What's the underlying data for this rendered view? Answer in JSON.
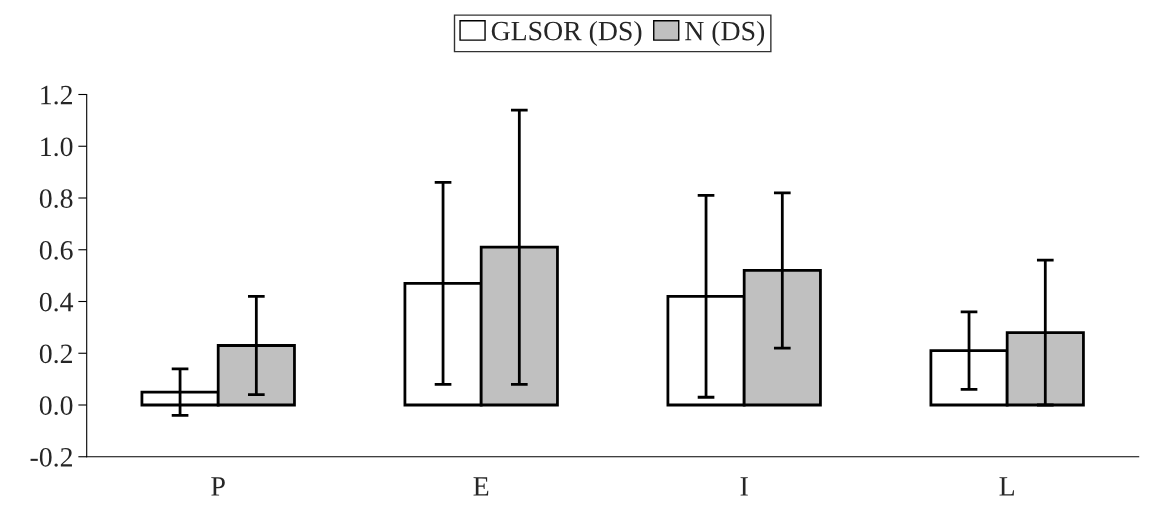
{
  "chart_data": {
    "type": "bar",
    "categories": [
      "P",
      "E",
      "I",
      "L"
    ],
    "series": [
      {
        "name": "GLSOR (DS)",
        "color": "#ffffff",
        "values": [
          0.05,
          0.47,
          0.42,
          0.21
        ],
        "errors": [
          0.09,
          0.39,
          0.39,
          0.15
        ]
      },
      {
        "name": "N (DS)",
        "color": "#c0c0c0",
        "values": [
          0.23,
          0.61,
          0.52,
          0.28
        ],
        "errors": [
          0.19,
          0.53,
          0.3,
          0.28
        ]
      }
    ],
    "ylim": [
      -0.2,
      1.2
    ],
    "yticks": [
      {
        "value": -0.2,
        "label": "-0.2"
      },
      {
        "value": 0,
        "label": "0.0"
      },
      {
        "value": 0.2,
        "label": "0.2"
      },
      {
        "value": 0.4,
        "label": "0.4"
      },
      {
        "value": 0.6,
        "label": "0.6"
      },
      {
        "value": 0.8,
        "label": "0.8"
      },
      {
        "value": 1.0,
        "label": "1.0"
      },
      {
        "value": 1.2,
        "label": "1.2"
      }
    ],
    "grid": false,
    "legend": "top"
  }
}
